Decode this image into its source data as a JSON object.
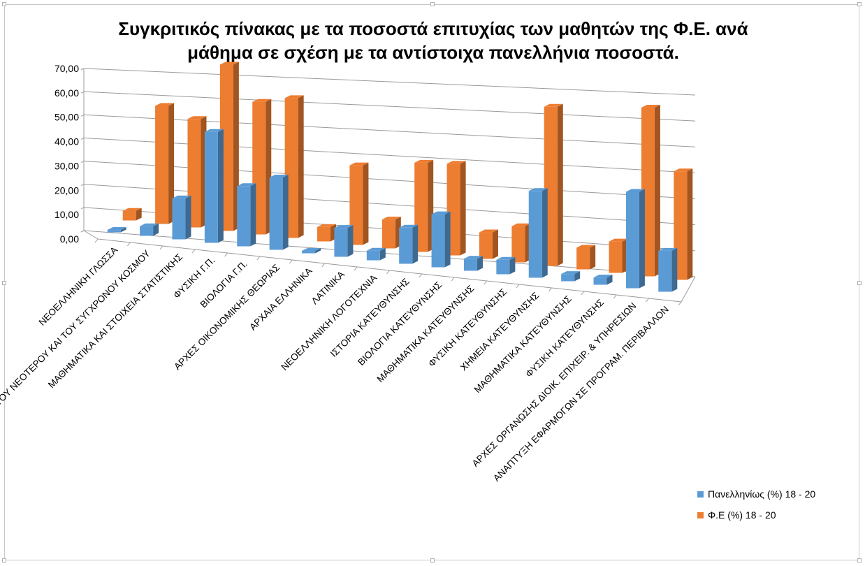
{
  "chart_data": {
    "type": "bar",
    "variant": "3d-clustered-column",
    "title_line1": "Συγκριτικός πίνακας με τα ποσοστά επιτυχίας των μαθητών της Φ.Ε. ανά",
    "title_line2": "μάθημα σε σχέση με τα αντίστοιχα πανελλήνια ποσοστά.",
    "ylim": [
      0,
      70
    ],
    "yticks": [
      "0,00",
      "10,00",
      "20,00",
      "30,00",
      "40,00",
      "50,00",
      "60,00",
      "70,00"
    ],
    "grid": true,
    "legend_position": "bottom-right",
    "categories": [
      "ΝΕΟΕΛΛΗΝΙΚΗ ΓΛΩΣΣΑ",
      "ΙΣΤΟΡΙΑ ΤΟΥ ΝΕΟΤΕΡΟΥ ΚΑΙ ΤΟΥ ΣΥΓΧΡΟΝΟΥ ΚΟΣΜΟΥ",
      "ΜΑΘΗΜΑΤΙΚΑ ΚΑΙ ΣΤΟΙΧΕΙΑ ΣΤΑΤΙΣΤΙΚΗΣ",
      "ΦΥΣΙΚΗ Γ.Π.",
      "ΒΙΟΛΟΓΙΑ Γ.Π.",
      "ΑΡΧΕΣ ΟΙΚΟΝΟΜΙΚΗΣ ΘΕΩΡΙΑΣ",
      "ΑΡΧΑΙΑ ΕΛΛΗΝΙΚΑ",
      "ΛΑΤΙΝΙΚΑ",
      "ΝΕΟΕΛΛΗΝΙΚΗ ΛΟΓΟΤΕΧΝΙΑ",
      "ΙΣΤΟΡΙΑ ΚΑΤΕΥΘΥΝΣΗΣ",
      "ΒΙΟΛΟΓΙΑ ΚΑΤΕΥΘΥΝΣΗΣ",
      "ΜΑΘΗΜΑΤΙΚΑ ΚΑΤΕΥΘΥΝΣΗΣ",
      "ΦΥΣΙΚΗ ΚΑΤΕΥΘΥΝΣΗΣ",
      "ΧΗΜΕΙΑ ΚΑΤΕΥΘΥΝΣΗΣ",
      "ΜΑΘΗΜΑΤΙΚΑ ΚΑΤΕΥΘΥΝΣΗΣ",
      "ΦΥΣΙΚΗ ΚΑΤΕΥΘΥΝΣΗΣ",
      "ΑΡΧΕΣ ΟΡΓΑΝΩΣΗΣ ΔΙΟΙΚ. ΕΠΙΧΕΙΡ. & ΥΠΗΡΕΣΙΩΝ",
      "ΑΝΑΠΤΥΞΗ ΕΦΑΡΜΟΓΩΝ ΣΕ ΠΡΟΓΡΑΜ. ΠΕΡΙΒΑΛΛΟΝ"
    ],
    "series": [
      {
        "name": "Πανελληνίως (%) 18 - 20",
        "color": "#5B9BD5",
        "values": [
          1,
          4,
          17,
          46,
          25,
          30,
          1,
          12,
          4,
          15,
          22,
          5,
          6,
          36,
          3,
          3,
          40,
          17
        ]
      },
      {
        "name": "Φ.Ε (%) 18 - 20",
        "color": "#ED7D31",
        "values": [
          4,
          49,
          45,
          69,
          55,
          58,
          6,
          33,
          12,
          37,
          38,
          11,
          15,
          66,
          9,
          13,
          70,
          45
        ]
      }
    ]
  }
}
